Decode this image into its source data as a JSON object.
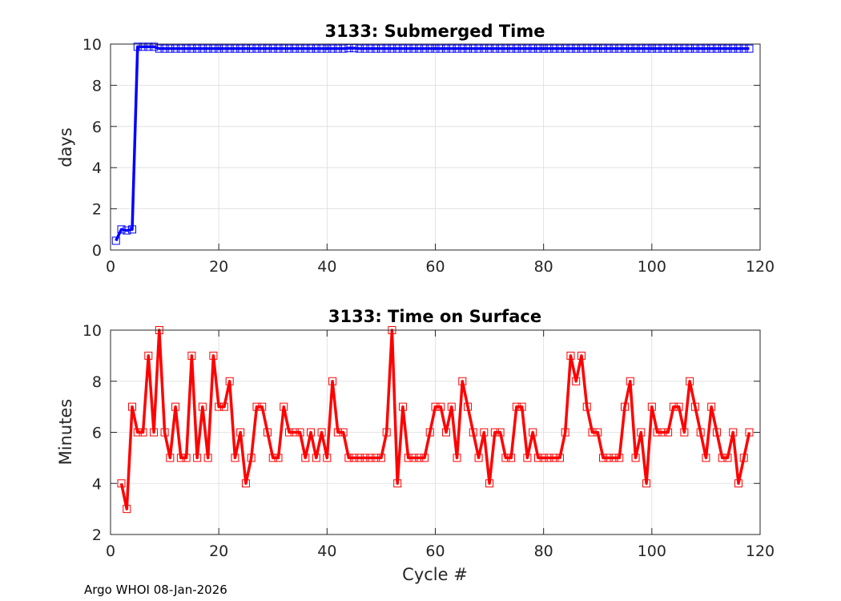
{
  "footer_text": "Argo WHOI 08-Jan-2026",
  "chart_data": [
    {
      "type": "line",
      "title": "3133: Submerged Time",
      "xlabel": "",
      "ylabel": "days",
      "xlim": [
        0,
        120
      ],
      "ylim": [
        0,
        10
      ],
      "xticks": [
        0,
        20,
        40,
        60,
        80,
        100,
        120
      ],
      "yticks": [
        0,
        2,
        4,
        6,
        8,
        10
      ],
      "grid": true,
      "color": "#0000ff",
      "marker": "square",
      "series": [
        {
          "name": "Submerged Time",
          "x": [
            1,
            2,
            3,
            4,
            5,
            6,
            7,
            8,
            9,
            10,
            11,
            12,
            13,
            14,
            15,
            16,
            17,
            18,
            19,
            20,
            21,
            22,
            23,
            24,
            25,
            26,
            27,
            28,
            29,
            30,
            31,
            32,
            33,
            34,
            35,
            36,
            37,
            38,
            39,
            40,
            41,
            42,
            43,
            44,
            45,
            46,
            47,
            48,
            49,
            50,
            51,
            52,
            53,
            54,
            55,
            56,
            57,
            58,
            59,
            60,
            61,
            62,
            63,
            64,
            65,
            66,
            67,
            68,
            69,
            70,
            71,
            72,
            73,
            74,
            75,
            76,
            77,
            78,
            79,
            80,
            81,
            82,
            83,
            84,
            85,
            86,
            87,
            88,
            89,
            90,
            91,
            92,
            93,
            94,
            95,
            96,
            97,
            98,
            99,
            100,
            101,
            102,
            103,
            104,
            105,
            106,
            107,
            108,
            109,
            110,
            111,
            112,
            113,
            114,
            115,
            116,
            117,
            118
          ],
          "values": [
            0.45,
            1.0,
            0.95,
            1.0,
            9.87,
            9.87,
            9.87,
            9.87,
            9.78,
            9.78,
            9.78,
            9.78,
            9.78,
            9.78,
            9.78,
            9.78,
            9.78,
            9.78,
            9.78,
            9.78,
            9.78,
            9.78,
            9.78,
            9.78,
            9.78,
            9.78,
            9.78,
            9.78,
            9.78,
            9.78,
            9.78,
            9.78,
            9.78,
            9.78,
            9.78,
            9.78,
            9.78,
            9.78,
            9.78,
            9.78,
            9.78,
            9.78,
            9.78,
            9.8,
            9.8,
            9.78,
            9.78,
            9.78,
            9.78,
            9.78,
            9.78,
            9.78,
            9.78,
            9.78,
            9.78,
            9.78,
            9.78,
            9.78,
            9.78,
            9.78,
            9.78,
            9.78,
            9.78,
            9.78,
            9.78,
            9.78,
            9.78,
            9.78,
            9.78,
            9.78,
            9.78,
            9.78,
            9.78,
            9.78,
            9.78,
            9.78,
            9.78,
            9.78,
            9.78,
            9.78,
            9.78,
            9.78,
            9.78,
            9.78,
            9.78,
            9.78,
            9.78,
            9.78,
            9.78,
            9.78,
            9.78,
            9.78,
            9.78,
            9.78,
            9.78,
            9.78,
            9.78,
            9.78,
            9.78,
            9.78,
            9.78,
            9.78,
            9.78,
            9.78,
            9.78,
            9.78,
            9.78,
            9.78,
            9.78,
            9.78,
            9.78,
            9.78,
            9.78,
            9.78,
            9.78,
            9.78,
            9.78,
            9.78
          ]
        }
      ]
    },
    {
      "type": "line",
      "title": "3133: Time on Surface",
      "xlabel": "Cycle #",
      "ylabel": "Minutes",
      "xlim": [
        0,
        120
      ],
      "ylim": [
        2,
        10
      ],
      "xticks": [
        0,
        20,
        40,
        60,
        80,
        100,
        120
      ],
      "yticks": [
        2,
        4,
        6,
        8,
        10
      ],
      "grid": true,
      "color": "#ff0000",
      "marker": "square",
      "series": [
        {
          "name": "Time on Surface",
          "x": [
            2,
            3,
            4,
            5,
            6,
            7,
            8,
            9,
            10,
            11,
            12,
            13,
            14,
            15,
            16,
            17,
            18,
            19,
            20,
            21,
            22,
            23,
            24,
            25,
            26,
            27,
            28,
            29,
            30,
            31,
            32,
            33,
            34,
            35,
            36,
            37,
            38,
            39,
            40,
            41,
            42,
            43,
            44,
            45,
            46,
            47,
            48,
            49,
            50,
            51,
            52,
            53,
            54,
            55,
            56,
            57,
            58,
            59,
            60,
            61,
            62,
            63,
            64,
            65,
            66,
            67,
            68,
            69,
            70,
            71,
            72,
            73,
            74,
            75,
            76,
            77,
            78,
            79,
            80,
            81,
            82,
            83,
            84,
            85,
            86,
            87,
            88,
            89,
            90,
            91,
            92,
            93,
            94,
            95,
            96,
            97,
            98,
            99,
            100,
            101,
            102,
            103,
            104,
            105,
            106,
            107,
            108,
            109,
            110,
            111,
            112,
            113,
            114,
            115,
            116,
            117,
            118
          ],
          "values": [
            4,
            3,
            7,
            6,
            6,
            9,
            6,
            10,
            6,
            5,
            7,
            5,
            5,
            9,
            5,
            7,
            5,
            9,
            7,
            7,
            8,
            5,
            6,
            4,
            5,
            7,
            7,
            6,
            5,
            5,
            7,
            6,
            6,
            6,
            5,
            6,
            5,
            6,
            5,
            8,
            6,
            6,
            5,
            5,
            5,
            5,
            5,
            5,
            5,
            6,
            10,
            4,
            7,
            5,
            5,
            5,
            5,
            6,
            7,
            7,
            6,
            7,
            5,
            8,
            7,
            6,
            5,
            6,
            4,
            6,
            6,
            5,
            5,
            7,
            7,
            5,
            6,
            5,
            5,
            5,
            5,
            5,
            6,
            9,
            8,
            9,
            7,
            6,
            6,
            5,
            5,
            5,
            5,
            7,
            8,
            5,
            6,
            4,
            7,
            6,
            6,
            6,
            7,
            7,
            6,
            8,
            7,
            6,
            5,
            7,
            6,
            5,
            5,
            6,
            4,
            5,
            6
          ]
        }
      ]
    }
  ]
}
